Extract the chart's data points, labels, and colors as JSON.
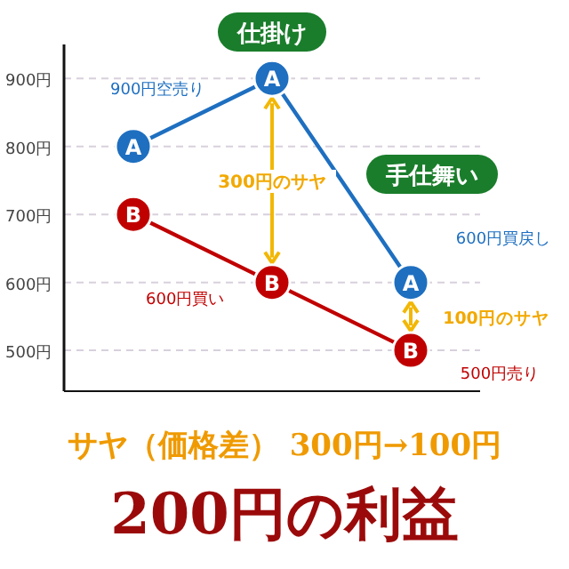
{
  "chart_data": {
    "type": "line",
    "title": "200円の利益",
    "subtitle": "サヤ（価格差） 300円→100円",
    "categories": [
      null,
      null,
      null
    ],
    "series": [
      {
        "name": "A",
        "color": "#1e6fc0",
        "values": [
          800,
          900,
          600
        ]
      },
      {
        "name": "B",
        "color": "#c00000",
        "values": [
          700,
          600,
          500
        ]
      }
    ],
    "ylim": [
      440,
      950
    ],
    "yticks": [
      {
        "value": 500,
        "label": "500円"
      },
      {
        "value": 600,
        "label": "600円"
      },
      {
        "value": 700,
        "label": "700円"
      },
      {
        "value": 800,
        "label": "800円"
      },
      {
        "value": 900,
        "label": "900円"
      }
    ],
    "grid": "y",
    "marker": "circle",
    "line_style": "solid",
    "annotations": [
      "仕掛け",
      "手仕舞い",
      "900円空売り",
      "600円買い",
      "600円買戻し",
      "500円売り",
      "300円のサヤ",
      "100円のサヤ"
    ]
  }
}
